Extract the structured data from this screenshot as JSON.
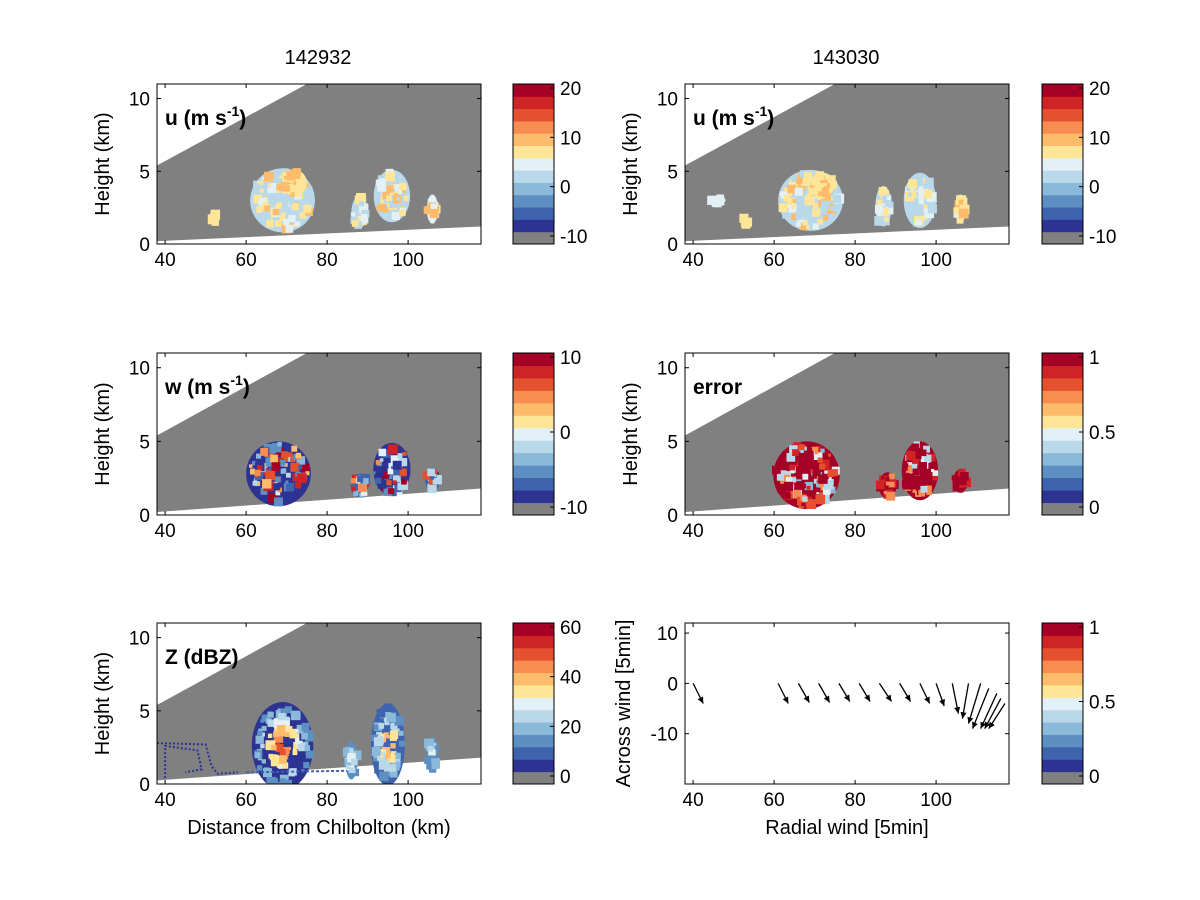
{
  "figure": {
    "columns": [
      {
        "title": "142932"
      },
      {
        "title": "143030"
      }
    ]
  },
  "colors": {
    "mask": "#808080",
    "palette": [
      "#808080",
      "#2d3392",
      "#3f64ae",
      "#5d8fc3",
      "#8ab9d9",
      "#b9d9ea",
      "#e3f0f6",
      "#fee597",
      "#fdbc6c",
      "#f88d52",
      "#e4512f",
      "#cf2426",
      "#a50026"
    ]
  },
  "chart_data": [
    {
      "id": "u1",
      "type": "heatmap",
      "label": "u (m s",
      "label_sup": "-1",
      "label_close": ")",
      "xlim": [
        38,
        118
      ],
      "ylim": [
        0,
        11
      ],
      "xticks": [
        "40",
        "60",
        "80",
        "100"
      ],
      "yticks": [
        "0",
        "5",
        "10"
      ],
      "ylabel": "Height (km)",
      "xlabel": "",
      "colorbar": {
        "ticks": [
          "20",
          "10",
          "0",
          "-10"
        ]
      }
    },
    {
      "id": "u2",
      "type": "heatmap",
      "label": "u (m s",
      "label_sup": "-1",
      "label_close": ")",
      "xlim": [
        38,
        118
      ],
      "ylim": [
        0,
        11
      ],
      "xticks": [
        "40",
        "60",
        "80",
        "100"
      ],
      "yticks": [
        "0",
        "5",
        "10"
      ],
      "ylabel": "Height (km)",
      "xlabel": "",
      "colorbar": {
        "ticks": [
          "20",
          "10",
          "0",
          "-10"
        ]
      }
    },
    {
      "id": "w",
      "type": "heatmap",
      "label": "w (m s",
      "label_sup": "-1",
      "label_close": ")",
      "xlim": [
        38,
        118
      ],
      "ylim": [
        0,
        11
      ],
      "xticks": [
        "40",
        "60",
        "80",
        "100"
      ],
      "yticks": [
        "0",
        "5",
        "10"
      ],
      "ylabel": "Height (km)",
      "xlabel": "",
      "colorbar": {
        "ticks": [
          "10",
          "0",
          "-10"
        ]
      }
    },
    {
      "id": "err",
      "type": "heatmap",
      "label": "error",
      "label_sup": "",
      "label_close": "",
      "xlim": [
        38,
        118
      ],
      "ylim": [
        0,
        11
      ],
      "xticks": [
        "40",
        "60",
        "80",
        "100"
      ],
      "yticks": [
        "0",
        "5",
        "10"
      ],
      "ylabel": "Height (km)",
      "xlabel": "",
      "colorbar": {
        "ticks": [
          "1",
          "0.5",
          "0"
        ]
      }
    },
    {
      "id": "z",
      "type": "heatmap",
      "label": "Z (dBZ)",
      "label_sup": "",
      "label_close": "",
      "xlim": [
        38,
        118
      ],
      "ylim": [
        0,
        11
      ],
      "xticks": [
        "40",
        "60",
        "80",
        "100"
      ],
      "yticks": [
        "0",
        "5",
        "10"
      ],
      "ylabel": "Height (km)",
      "xlabel": "Distance from Chilbolton (km)",
      "colorbar": {
        "ticks": [
          "60",
          "40",
          "20",
          "0"
        ]
      }
    },
    {
      "id": "wind",
      "type": "quiver",
      "label": "",
      "label_sup": "",
      "label_close": "",
      "xlim": [
        38,
        118
      ],
      "ylim": [
        -20,
        12
      ],
      "xticks": [
        "40",
        "60",
        "80",
        "100"
      ],
      "yticks": [
        "10",
        "0",
        "-10"
      ],
      "ylabel": "Across wind [5min]",
      "xlabel": "Radial wind [5min]",
      "colorbar": {
        "ticks": [
          "1",
          "0.5",
          "0"
        ]
      },
      "vectors": [
        {
          "x": 40,
          "y": 0,
          "u": 2.5,
          "v": -4
        },
        {
          "x": 61,
          "y": 0,
          "u": 2.5,
          "v": -4
        },
        {
          "x": 66,
          "y": 0,
          "u": 2.7,
          "v": -3.8
        },
        {
          "x": 71,
          "y": 0,
          "u": 2.7,
          "v": -3.8
        },
        {
          "x": 76,
          "y": 0,
          "u": 2.7,
          "v": -3.6
        },
        {
          "x": 81,
          "y": 0,
          "u": 2.7,
          "v": -3.6
        },
        {
          "x": 86,
          "y": 0,
          "u": 3,
          "v": -3.6
        },
        {
          "x": 91,
          "y": 0,
          "u": 2.7,
          "v": -3.6
        },
        {
          "x": 96,
          "y": 0,
          "u": 2.4,
          "v": -4
        },
        {
          "x": 100,
          "y": 0,
          "u": 2,
          "v": -4.5
        },
        {
          "x": 104,
          "y": 0,
          "u": 1.5,
          "v": -6
        },
        {
          "x": 108,
          "y": 0,
          "u": -1.5,
          "v": -7
        },
        {
          "x": 111,
          "y": 0,
          "u": -3,
          "v": -8
        },
        {
          "x": 113,
          "y": -1,
          "u": -4,
          "v": -8
        },
        {
          "x": 115,
          "y": -2,
          "u": -4,
          "v": -7
        },
        {
          "x": 116,
          "y": -3,
          "u": -4,
          "v": -6
        },
        {
          "x": 117,
          "y": -4,
          "u": -4,
          "v": -5
        }
      ]
    }
  ]
}
